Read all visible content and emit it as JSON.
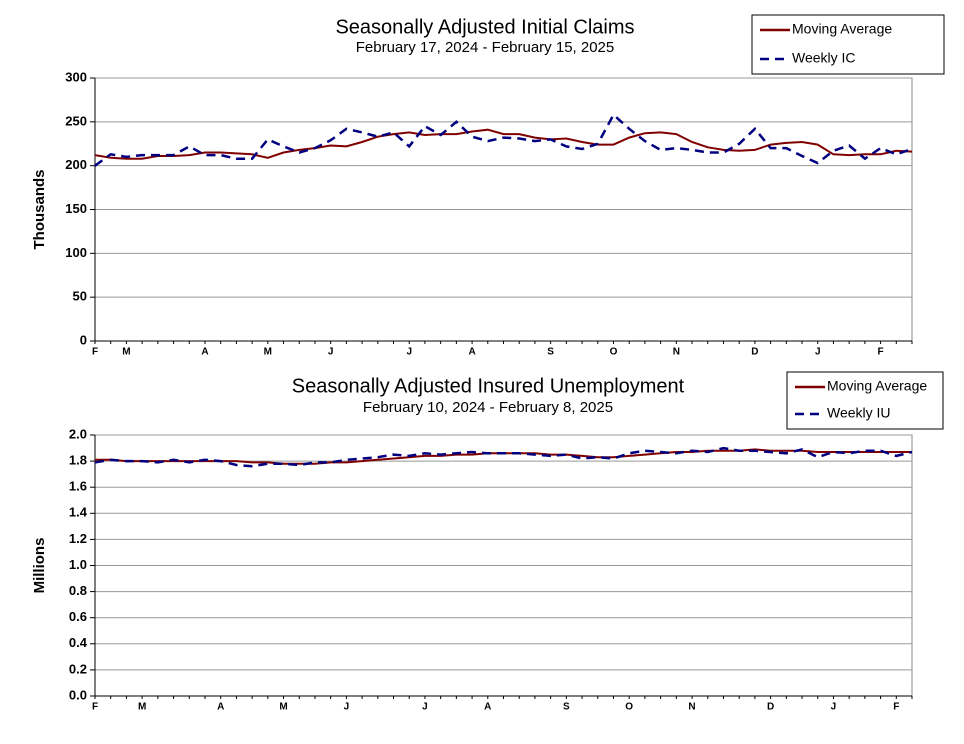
{
  "chart_data": [
    {
      "type": "line",
      "title": "Seasonally Adjusted Initial Claims",
      "subtitle": "February 17, 2024 - February 15, 2025",
      "y_label": "Thousands",
      "categories": [
        "F",
        null,
        "M",
        null,
        null,
        null,
        null,
        "A",
        null,
        null,
        null,
        "M",
        null,
        null,
        null,
        "J",
        null,
        null,
        null,
        null,
        "J",
        null,
        null,
        null,
        "A",
        null,
        null,
        null,
        null,
        "S",
        null,
        null,
        null,
        "O",
        null,
        null,
        null,
        "N",
        null,
        null,
        null,
        null,
        "D",
        null,
        null,
        null,
        "J",
        null,
        null,
        null,
        "F",
        null,
        null
      ],
      "series": [
        {
          "name": "Moving Average",
          "color": "#800000",
          "style": "solid",
          "values": [
            212,
            209,
            208,
            208,
            211,
            211,
            212,
            215,
            215,
            214,
            213,
            209,
            215,
            218,
            220,
            223,
            222,
            227,
            233,
            236,
            238,
            235,
            236,
            236,
            239,
            241,
            236,
            236,
            232,
            230,
            231,
            227,
            224,
            224,
            232,
            237,
            238,
            236,
            227,
            221,
            218,
            217,
            218,
            224,
            226,
            227,
            224,
            213,
            212,
            213,
            213,
            217,
            216
          ]
        },
        {
          "name": "Weekly IC",
          "color": "#000080",
          "style": "dashed",
          "values": [
            200,
            213,
            210,
            212,
            212,
            212,
            222,
            212,
            212,
            208,
            208,
            230,
            222,
            215,
            220,
            229,
            242,
            238,
            233,
            238,
            222,
            245,
            235,
            250,
            233,
            228,
            232,
            231,
            228,
            230,
            222,
            219,
            225,
            258,
            242,
            228,
            218,
            220,
            218,
            215,
            215,
            225,
            242,
            220,
            220,
            211,
            203,
            217,
            223,
            208,
            220,
            213,
            219
          ]
        }
      ],
      "ylim": [
        0,
        300
      ],
      "yticks": [
        0,
        50,
        100,
        150,
        200,
        250,
        300
      ],
      "grid": true,
      "legend": "upper right"
    },
    {
      "type": "line",
      "title": "Seasonally Adjusted Insured Unemployment",
      "subtitle": "February 10, 2024 - February 8, 2025",
      "y_label": "Millions",
      "categories": [
        "F",
        null,
        null,
        "M",
        null,
        null,
        null,
        null,
        "A",
        null,
        null,
        null,
        "M",
        null,
        null,
        null,
        "J",
        null,
        null,
        null,
        null,
        "J",
        null,
        null,
        null,
        "A",
        null,
        null,
        null,
        null,
        "S",
        null,
        null,
        null,
        "O",
        null,
        null,
        null,
        "N",
        null,
        null,
        null,
        null,
        "D",
        null,
        null,
        null,
        "J",
        null,
        null,
        null,
        "F",
        null
      ],
      "series": [
        {
          "name": "Moving Average",
          "color": "#800000",
          "style": "solid",
          "values": [
            1.81,
            1.81,
            1.8,
            1.8,
            1.8,
            1.8,
            1.8,
            1.8,
            1.8,
            1.8,
            1.79,
            1.79,
            1.78,
            1.78,
            1.78,
            1.79,
            1.79,
            1.8,
            1.81,
            1.82,
            1.83,
            1.84,
            1.84,
            1.85,
            1.85,
            1.86,
            1.86,
            1.86,
            1.86,
            1.85,
            1.85,
            1.84,
            1.83,
            1.83,
            1.84,
            1.85,
            1.86,
            1.87,
            1.87,
            1.88,
            1.88,
            1.88,
            1.89,
            1.88,
            1.88,
            1.88,
            1.87,
            1.87,
            1.87,
            1.87,
            1.87,
            1.87,
            1.87
          ]
        },
        {
          "name": "Weekly IU",
          "color": "#000080",
          "style": "dashed",
          "values": [
            1.79,
            1.81,
            1.8,
            1.8,
            1.79,
            1.81,
            1.79,
            1.81,
            1.8,
            1.77,
            1.76,
            1.78,
            1.78,
            1.77,
            1.79,
            1.79,
            1.81,
            1.82,
            1.83,
            1.85,
            1.84,
            1.86,
            1.85,
            1.86,
            1.87,
            1.86,
            1.86,
            1.86,
            1.85,
            1.84,
            1.85,
            1.82,
            1.83,
            1.82,
            1.86,
            1.88,
            1.87,
            1.86,
            1.88,
            1.87,
            1.9,
            1.88,
            1.88,
            1.87,
            1.86,
            1.89,
            1.83,
            1.87,
            1.86,
            1.88,
            1.88,
            1.84,
            1.87
          ]
        }
      ],
      "ylim": [
        0,
        2
      ],
      "yticks": [
        {
          "value": 0,
          "label": "0.0"
        },
        0.2,
        0.4,
        0.6,
        0.8,
        {
          "value": 1,
          "label": "1.0"
        },
        1.2,
        1.4,
        1.6,
        1.8,
        {
          "value": 2,
          "label": "2.0"
        }
      ],
      "grid": true,
      "legend": "upper right"
    }
  ]
}
